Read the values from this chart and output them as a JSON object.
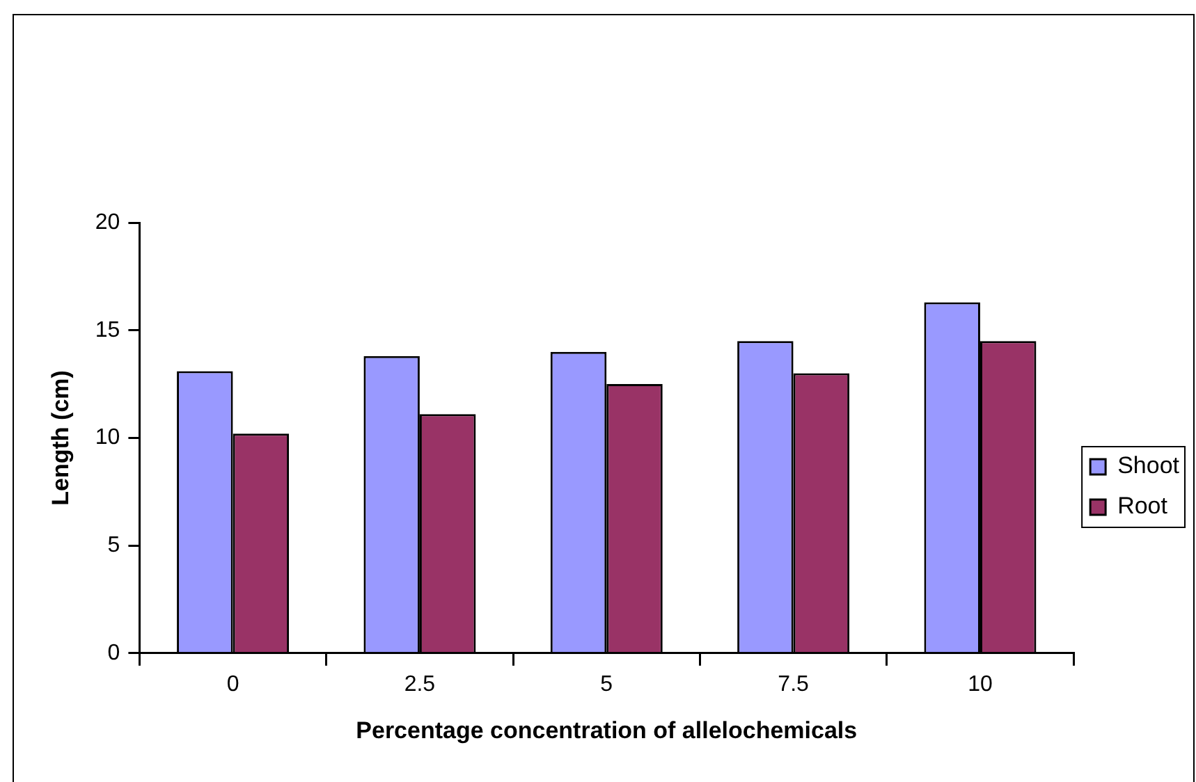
{
  "chart_data": {
    "type": "bar",
    "xlabel": "Percentage concentration of allelochemicals",
    "ylabel": "Length (cm)",
    "categories": [
      "0",
      "2.5",
      "5",
      "7.5",
      "10"
    ],
    "series": [
      {
        "name": "Shoot",
        "color": "#9999ff",
        "values": [
          13.1,
          13.8,
          14.0,
          14.5,
          16.3
        ]
      },
      {
        "name": "Root",
        "color": "#993366",
        "values": [
          10.2,
          11.1,
          12.5,
          13.0,
          14.5
        ]
      }
    ],
    "ylim": [
      0,
      20
    ],
    "yticks": [
      0,
      5,
      10,
      15,
      20
    ],
    "grid": false,
    "legend": "right"
  }
}
